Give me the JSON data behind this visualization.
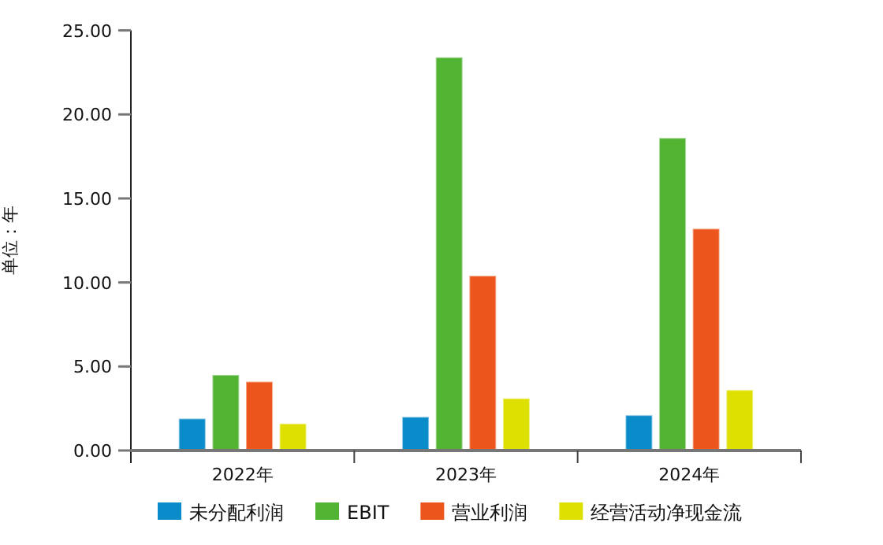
{
  "chart_data": {
    "type": "bar",
    "ylabel": "单位：年",
    "categories": [
      "2022年",
      "2023年",
      "2024年"
    ],
    "series": [
      {
        "name": "未分配利润",
        "color": "#0a8bca",
        "values": [
          1.9,
          2.0,
          2.1
        ]
      },
      {
        "name": "EBIT",
        "color": "#52b433",
        "values": [
          4.5,
          23.4,
          18.6
        ]
      },
      {
        "name": "营业利润",
        "color": "#ec561c",
        "values": [
          4.1,
          10.4,
          13.2
        ]
      },
      {
        "name": "经营活动净现金流",
        "color": "#dde000",
        "values": [
          1.6,
          3.1,
          3.6
        ]
      }
    ],
    "ylim": [
      0,
      25
    ],
    "yticks": [
      {
        "value": 0,
        "label": "0.00"
      },
      {
        "value": 5,
        "label": "5.00"
      },
      {
        "value": 10,
        "label": "10.00"
      },
      {
        "value": 15,
        "label": "15.00"
      },
      {
        "value": 20,
        "label": "20.00"
      },
      {
        "value": 25,
        "label": "25.00"
      }
    ],
    "legend": "bottom"
  }
}
